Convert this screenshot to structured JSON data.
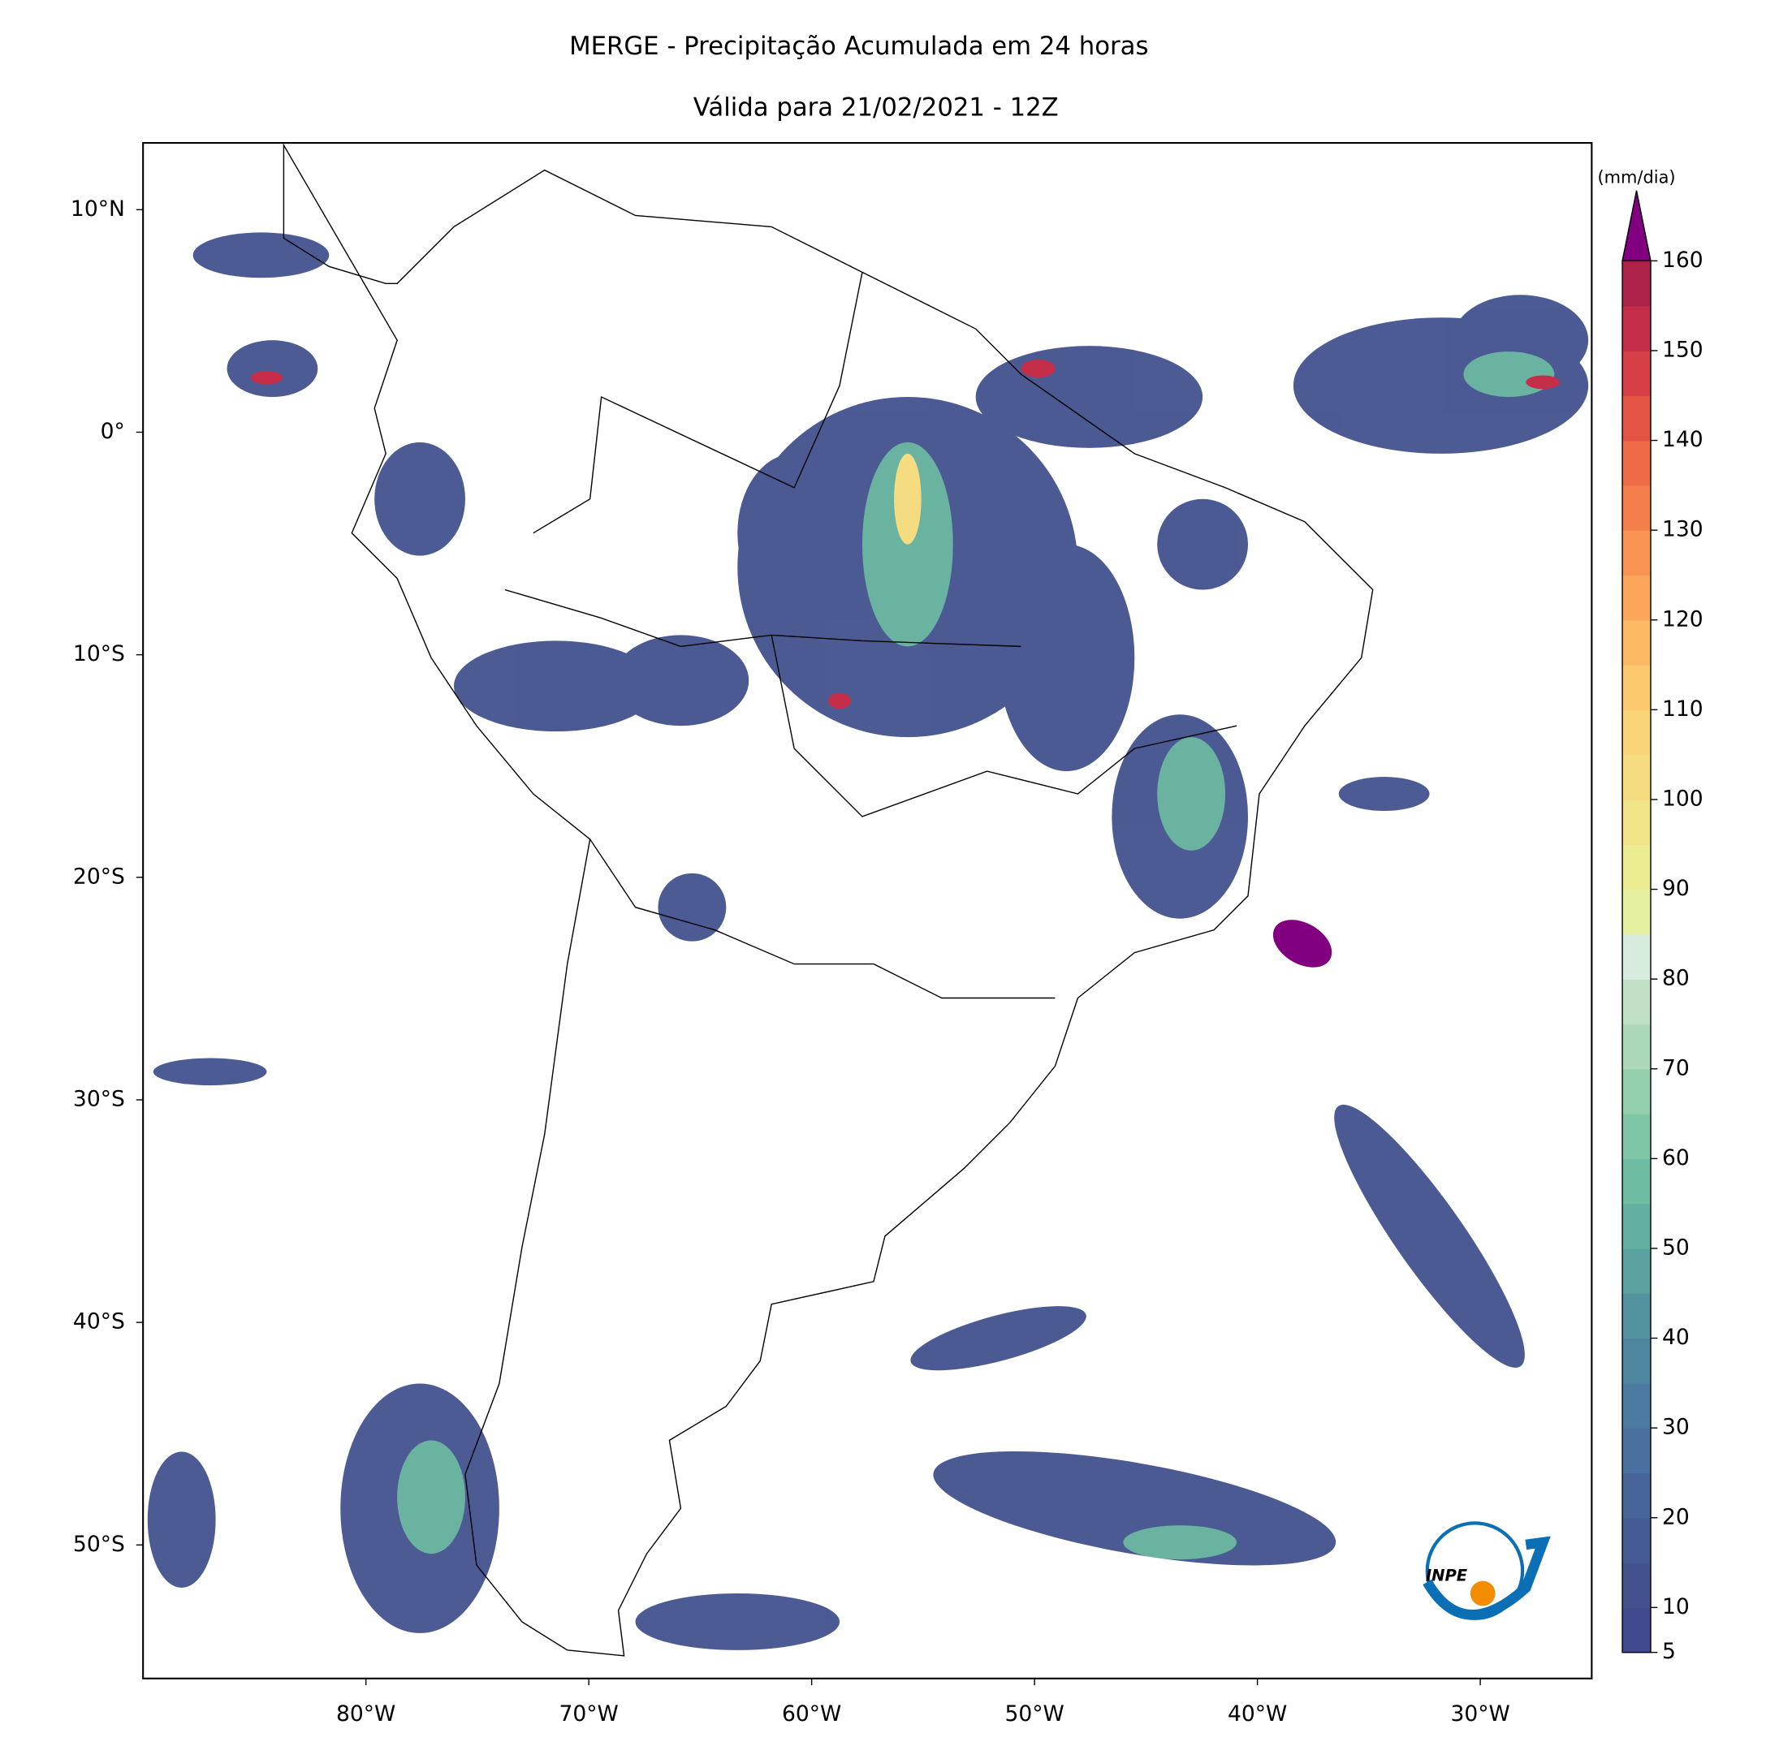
{
  "map": {
    "title": "MERGE - Precipitação Acumulada em 24 horas",
    "subtitle": "Válida para 21/02/2021 - 12Z",
    "xlim": [
      -90,
      -25
    ],
    "ylim": [
      -56,
      13
    ],
    "xticks": [
      {
        "value": -80,
        "label": "80°W"
      },
      {
        "value": -70,
        "label": "70°W"
      },
      {
        "value": -60,
        "label": "60°W"
      },
      {
        "value": -50,
        "label": "50°W"
      },
      {
        "value": -40,
        "label": "40°W"
      },
      {
        "value": -30,
        "label": "30°W"
      }
    ],
    "yticks": [
      {
        "value": 10,
        "label": "10°N"
      },
      {
        "value": 0,
        "label": "0°"
      },
      {
        "value": -10,
        "label": "10°S"
      },
      {
        "value": -20,
        "label": "20°S"
      },
      {
        "value": -30,
        "label": "30°S"
      },
      {
        "value": -40,
        "label": "40°S"
      },
      {
        "value": -50,
        "label": "50°S"
      }
    ],
    "colorbar": {
      "label": "(mm/dia)",
      "lim": [
        5,
        160
      ],
      "ticks": [
        5,
        10,
        20,
        30,
        40,
        50,
        60,
        70,
        80,
        90,
        100,
        110,
        120,
        130,
        140,
        150,
        160
      ],
      "colors": [
        "#414a8e",
        "#43528f",
        "#455b95",
        "#48659a",
        "#4a709f",
        "#4c7aa0",
        "#4e86a0",
        "#5393a0",
        "#5aa1a0",
        "#63afa0",
        "#6ebca2",
        "#7fc6a6",
        "#94cfad",
        "#aad8b8",
        "#c0e1c6",
        "#d8ecde",
        "#e6f0a0",
        "#ecec90",
        "#f2e488",
        "#f6dc80",
        "#fad478",
        "#fcc870",
        "#fdb866",
        "#fca65c",
        "#f99354",
        "#f57f4c",
        "#ef6a46",
        "#e45444",
        "#d63f46",
        "#c42e48",
        "#ad2249"
      ],
      "extend_color": "#800080"
    },
    "logo": {
      "text": "INPE"
    }
  }
}
